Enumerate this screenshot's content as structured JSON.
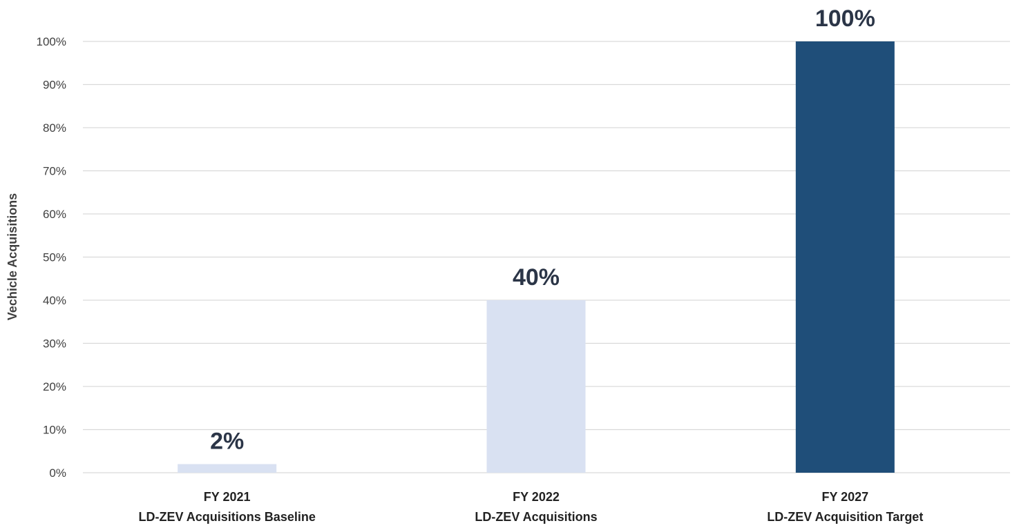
{
  "chart_data": {
    "type": "bar",
    "categories": [
      [
        "FY 2021",
        "LD-ZEV Acquisitions Baseline"
      ],
      [
        "FY 2022",
        "LD-ZEV Acquisitions"
      ],
      [
        "FY 2027",
        "LD-ZEV Acquisition Target"
      ]
    ],
    "values": [
      2,
      40,
      100
    ],
    "data_labels": [
      "2%",
      "40%",
      "100%"
    ],
    "bar_colors": [
      "#d9e1f2",
      "#d9e1f2",
      "#1f4e79"
    ],
    "ylabel": "Vechicle Acquisitions",
    "xlabel": "",
    "ylim": [
      0,
      100
    ],
    "yticks": [
      0,
      10,
      20,
      30,
      40,
      50,
      60,
      70,
      80,
      90,
      100
    ],
    "ytick_labels": [
      "0%",
      "10%",
      "20%",
      "30%",
      "40%",
      "50%",
      "60%",
      "70%",
      "80%",
      "90%",
      "100%"
    ],
    "grid": true,
    "legend": "none",
    "colors": {
      "grid": "#d9d9d9",
      "tick_text": "#404040",
      "data_label_text": "#2b3547"
    }
  }
}
